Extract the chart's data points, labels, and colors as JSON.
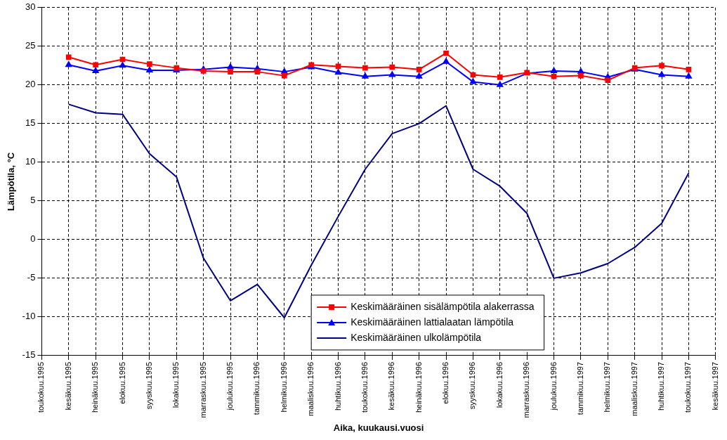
{
  "chart_data": {
    "type": "line",
    "xlabel": "Aika, kuukausi.vuosi",
    "ylabel": "Lämpötila, °C",
    "categories": [
      "toukokuu.1995",
      "kesäkuu.1995",
      "heinäkuu.1995",
      "elokuu.1995",
      "syyskuu.1995",
      "lokakuu.1995",
      "marraskuu.1995",
      "joulukuu.1995",
      "tammikuu.1996",
      "helmikuu.1996",
      "maaliskuu.1996",
      "huhtikuu.1996",
      "toukokuu.1996",
      "kesäkuu.1996",
      "heinäkuu.1996",
      "elokuu.1996",
      "syyskuu.1996",
      "lokakuu.1996",
      "marraskuu.1996",
      "joulukuu.1996",
      "tammikuu.1997",
      "helmikuu.1997",
      "maaliskuu.1997",
      "huhtikuu.1997",
      "toukokuu.1997",
      "kesäkuu.1997"
    ],
    "series": [
      {
        "name": "Keskimääräinen sisälämpötila alakerrassa",
        "color": "#ff0000",
        "marker": "square",
        "values": [
          null,
          23.6,
          22.6,
          23.3,
          22.7,
          22.2,
          21.8,
          21.7,
          21.7,
          21.2,
          22.6,
          22.4,
          22.2,
          22.3,
          22.0,
          24.1,
          21.3,
          21.0,
          21.6,
          21.1,
          21.2,
          20.6,
          22.2,
          22.5,
          22.0,
          null
        ]
      },
      {
        "name": "Keskimääräinen lattialaatan lämpötila",
        "color": "#0000ff",
        "marker": "triangle",
        "values": [
          null,
          22.6,
          21.8,
          22.5,
          21.9,
          21.9,
          22.0,
          22.3,
          22.1,
          21.7,
          22.3,
          21.6,
          21.1,
          21.3,
          21.1,
          23.0,
          20.4,
          20.0,
          21.5,
          21.8,
          21.7,
          21.0,
          22.0,
          21.3,
          21.1,
          null
        ]
      },
      {
        "name": "Keskimääräinen ulkolämpötila",
        "color": "#000080",
        "marker": "none",
        "values": [
          null,
          17.5,
          16.4,
          16.2,
          11.1,
          8.1,
          -2.4,
          -7.9,
          -5.8,
          -10.1,
          -3.3,
          3.0,
          9.1,
          13.7,
          15.0,
          17.3,
          9.1,
          6.9,
          3.4,
          -5.0,
          -4.3,
          -3.1,
          -1.0,
          2.1,
          8.6,
          null
        ]
      }
    ],
    "ylim": [
      -15,
      30
    ],
    "yticks": [
      -15,
      -10,
      -5,
      0,
      5,
      10,
      15,
      20,
      25,
      30
    ],
    "grid": true,
    "legend": "bottom",
    "line_style": "solid"
  }
}
